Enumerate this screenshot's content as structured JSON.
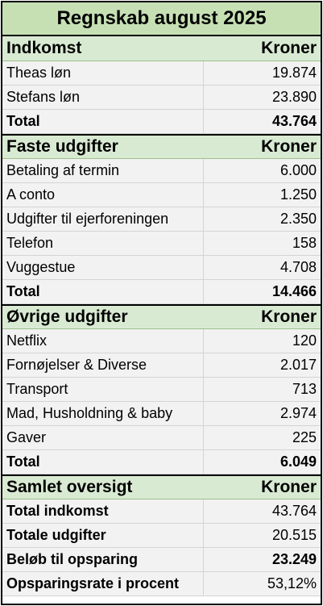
{
  "title": "Regnskab august 2025",
  "income": {
    "header": "Indkomst",
    "col": "Kroner",
    "rows": [
      {
        "label": "Theas løn",
        "value": "19.874"
      },
      {
        "label": "Stefans løn",
        "value": "23.890"
      }
    ],
    "total_label": "Total",
    "total_value": "43.764"
  },
  "fixed": {
    "header": "Faste udgifter",
    "col": "Kroner",
    "rows": [
      {
        "label": "Betaling af termin",
        "value": "6.000"
      },
      {
        "label": "A conto",
        "value": "1.250"
      },
      {
        "label": "Udgifter til ejerforeningen",
        "value": "2.350"
      },
      {
        "label": "Telefon",
        "value": "158"
      },
      {
        "label": "Vuggestue",
        "value": "4.708"
      }
    ],
    "total_label": "Total",
    "total_value": "14.466"
  },
  "other": {
    "header": "Øvrige udgifter",
    "col": "Kroner",
    "rows": [
      {
        "label": "Netflix",
        "value": "120"
      },
      {
        "label": "Fornøjelser & Diverse",
        "value": "2.017"
      },
      {
        "label": "Transport",
        "value": "713"
      },
      {
        "label": "Mad, Husholdning & baby",
        "value": "2.974"
      },
      {
        "label": "Gaver",
        "value": "225"
      }
    ],
    "total_label": "Total",
    "total_value": "6.049"
  },
  "summary": {
    "header": "Samlet oversigt",
    "col": "Kroner",
    "rows": [
      {
        "label": "Total indkomst",
        "value": "43.764"
      },
      {
        "label": "Totale udgifter",
        "value": "20.515"
      },
      {
        "label": "Beløb til opsparing",
        "value": "23.249"
      },
      {
        "label": "Opsparingsrate i procent",
        "value": "53,12%"
      }
    ]
  }
}
